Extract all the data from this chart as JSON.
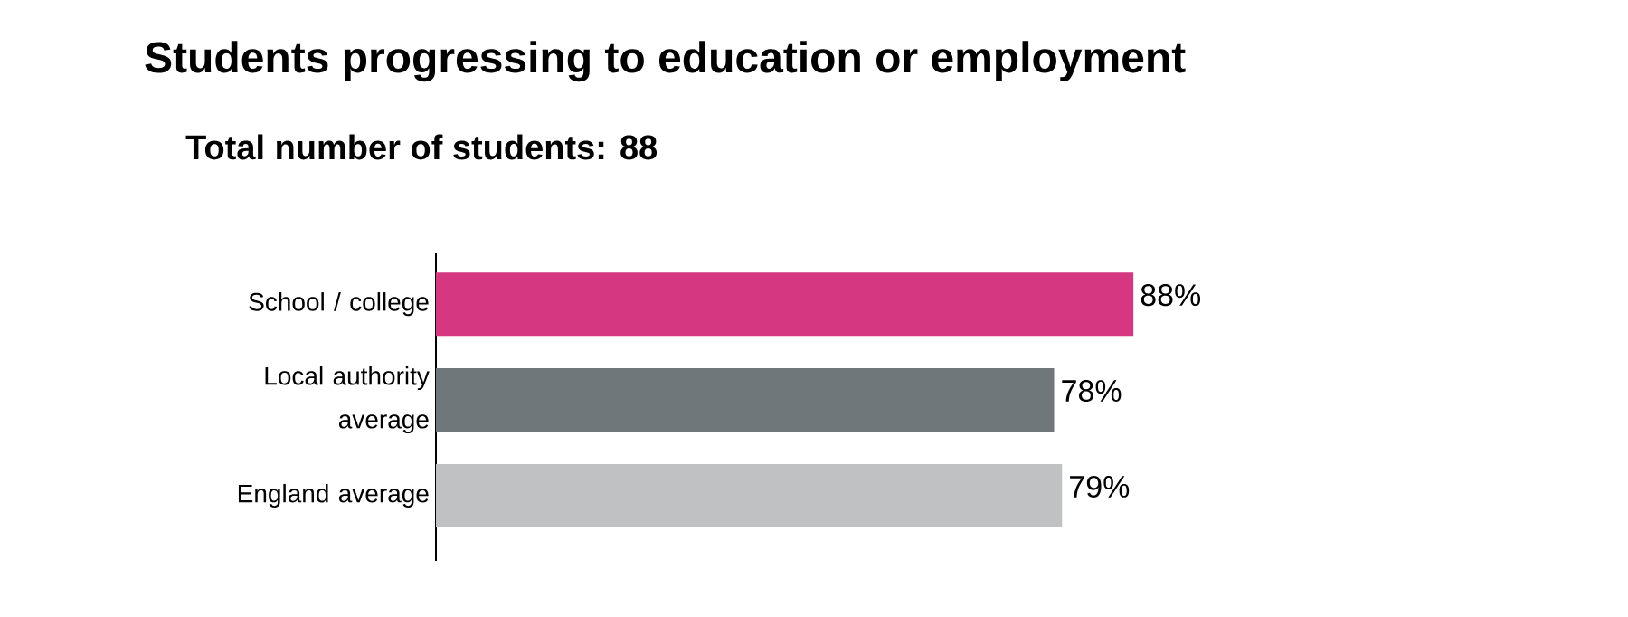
{
  "chart_data": {
    "type": "bar",
    "orientation": "horizontal",
    "title": "Students progressing to education or employment",
    "subtitle": "Total number of students: 88",
    "categories": [
      "School / college",
      "Local authority average",
      "England average"
    ],
    "values": [
      88,
      78,
      79
    ],
    "colors": [
      "#d53880",
      "#6f777b",
      "#bfc1c3"
    ],
    "value_labels": [
      "88%",
      "78%",
      "79%"
    ],
    "tick_labels": "y"
  }
}
